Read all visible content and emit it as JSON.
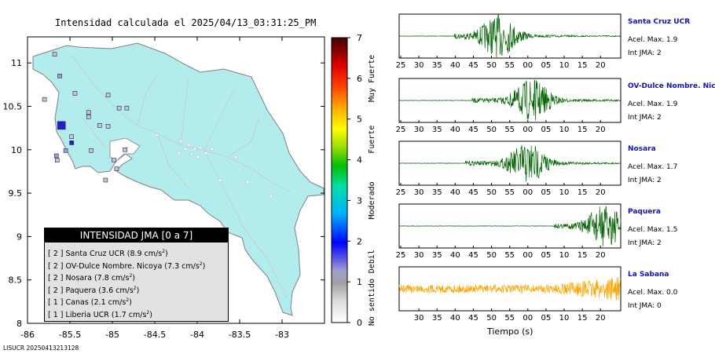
{
  "title": "Intensidad calculada el 2025/04/13_03:31:25_PM",
  "footer_id": "LISUCR 20250413213128",
  "map": {
    "lat_ticks": [
      "11",
      "10.5",
      "10",
      "9.5",
      "9",
      "8.5",
      "8"
    ],
    "lon_ticks": [
      "-86",
      "-85.5",
      "-85",
      "-84.5",
      "-84",
      "-83.5",
      "-83"
    ],
    "land_color": "#b3ecec",
    "sea_color": "#ffffff"
  },
  "colorbar": {
    "ticks": [
      "0",
      "1",
      "2",
      "3",
      "4",
      "5",
      "6",
      "7"
    ],
    "categories": [
      "No sentido",
      "Debil",
      "Moderado",
      "Fuerte",
      "Muy Fuerte"
    ]
  },
  "legend": {
    "title": "INTENSIDAD JMA [0 a 7]",
    "unit_base": "cm/s",
    "unit_exp": "2",
    "rows": [
      {
        "level": "[ 2 ]",
        "name": "Santa Cruz UCR",
        "value": "(8.9"
      },
      {
        "level": "[ 2 ]",
        "name": "OV-Dulce Nombre. Nicoya",
        "value": "(7.3"
      },
      {
        "level": "[ 2 ]",
        "name": "Nosara",
        "value": "(7.8"
      },
      {
        "level": "[ 2 ]",
        "name": "Paquera",
        "value": "(3.6"
      },
      {
        "level": "[ 1 ]",
        "name": "Canas",
        "value": "(2.1"
      },
      {
        "level": "[ 1 ]",
        "name": "Liberia UCR",
        "value": "(1.7"
      }
    ]
  },
  "stations": [
    {
      "name": "Santa Cruz UCR",
      "accel": "Acel. Max. 1.9",
      "jma": "Int JMA: 2",
      "color": "#006400",
      "onset": 0.25,
      "peak": 0.45,
      "amp": 1.0
    },
    {
      "name": "OV-Dulce Nombre. Nicoya",
      "accel": "Acel. Max. 1.9",
      "jma": "Int JMA: 2",
      "color": "#006400",
      "onset": 0.33,
      "peak": 0.6,
      "amp": 1.0
    },
    {
      "name": "Nosara",
      "accel": "Acel. Max. 1.7",
      "jma": "Int JMA: 2",
      "color": "#006400",
      "onset": 0.3,
      "peak": 0.58,
      "amp": 1.0
    },
    {
      "name": "Paquera",
      "accel": "Acel. Max. 1.5",
      "jma": "Int JMA: 2",
      "color": "#006400",
      "onset": 0.7,
      "peak": 0.93,
      "amp": 1.0
    },
    {
      "name": "La Sabana",
      "accel": "Acel. Max. 0.0",
      "jma": "Int JMA: 0",
      "color": "#ffa500",
      "onset": 0.0,
      "peak": 0.85,
      "amp": 1.0
    }
  ],
  "time_ticks": [
    "25",
    "30",
    "35",
    "40",
    "45",
    "50",
    "55",
    "00",
    "05",
    "10",
    "15",
    "20"
  ],
  "time_ticks_last": [
    "30",
    "35",
    "40",
    "45",
    "50",
    "55",
    "00",
    "05",
    "10",
    "15",
    "20"
  ],
  "time_axis_label": "Tiempo (s)",
  "chart_data": {
    "type": "scatter",
    "title": "Intensidad calculada el 2025/04/13_03:31:25_PM",
    "xlabel": "",
    "ylabel": "",
    "xlim": [
      -86,
      -82.5
    ],
    "ylim": [
      8,
      11.3
    ],
    "series": [
      {
        "name": "Santa Cruz UCR",
        "jma": 2,
        "accel_cm_s2": 8.9
      },
      {
        "name": "OV-Dulce Nombre. Nicoya",
        "jma": 2,
        "accel_cm_s2": 7.3
      },
      {
        "name": "Nosara",
        "jma": 2,
        "accel_cm_s2": 7.8
      },
      {
        "name": "Paquera",
        "jma": 2,
        "accel_cm_s2": 3.6
      },
      {
        "name": "Canas",
        "jma": 1,
        "accel_cm_s2": 2.1
      },
      {
        "name": "Liberia UCR",
        "jma": 1,
        "accel_cm_s2": 1.7
      }
    ],
    "stations_plotted": [
      {
        "lon": -85.6,
        "lat": 10.28,
        "jma": 2
      },
      {
        "lon": -85.48,
        "lat": 10.08,
        "jma": 2
      },
      {
        "lon": -85.55,
        "lat": 9.99,
        "jma": 1
      },
      {
        "lon": -85.66,
        "lat": 9.93,
        "jma": 1
      },
      {
        "lon": -85.68,
        "lat": 11.1,
        "jma": 0
      },
      {
        "lon": -85.05,
        "lat": 10.63,
        "jma": 0
      },
      {
        "lon": -84.92,
        "lat": 10.48,
        "jma": 0
      },
      {
        "lon": -84.83,
        "lat": 10.48,
        "jma": 0
      },
      {
        "lon": -85.62,
        "lat": 10.85,
        "jma": 1
      },
      {
        "lon": -85.44,
        "lat": 10.65,
        "jma": 0
      },
      {
        "lon": -85.8,
        "lat": 10.58,
        "jma": 0
      },
      {
        "lon": -85.28,
        "lat": 10.43,
        "jma": 0
      },
      {
        "lon": -85.15,
        "lat": 10.28,
        "jma": 0
      },
      {
        "lon": -85.05,
        "lat": 10.27,
        "jma": 0
      },
      {
        "lon": -85.25,
        "lat": 9.99,
        "jma": 0
      },
      {
        "lon": -85.28,
        "lat": 10.38,
        "jma": 0
      },
      {
        "lon": -85.48,
        "lat": 10.15,
        "jma": 0
      },
      {
        "lon": -84.95,
        "lat": 9.78,
        "jma": 0
      },
      {
        "lon": -85.08,
        "lat": 9.65,
        "jma": 0
      },
      {
        "lon": -84.98,
        "lat": 9.88,
        "jma": 0
      },
      {
        "lon": -84.85,
        "lat": 10.0,
        "jma": 0
      },
      {
        "lon": -85.65,
        "lat": 9.88,
        "jma": 0
      }
    ]
  }
}
